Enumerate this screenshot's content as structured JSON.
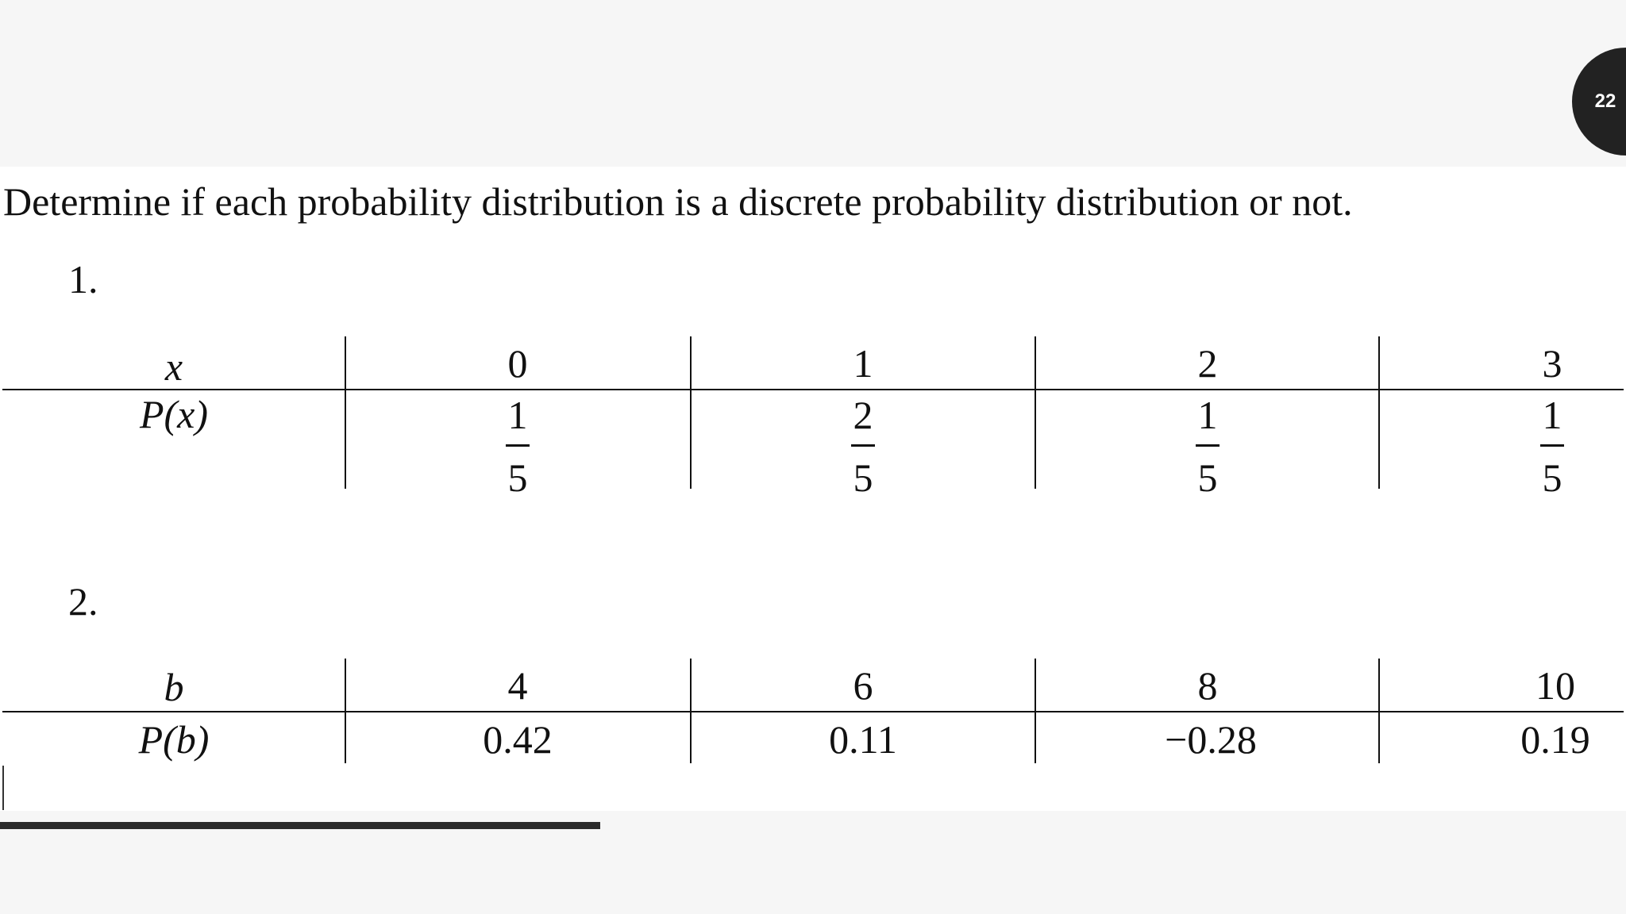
{
  "slide": {
    "number": "22"
  },
  "instruction": "Determine if each probability distribution is a discrete probability distribution or not.",
  "problems": [
    {
      "label": "1.",
      "var_label": "x",
      "prob_label": "P(x)",
      "values": [
        "0",
        "1",
        "2",
        "3"
      ],
      "probabilities": [
        {
          "num": "1",
          "den": "5"
        },
        {
          "num": "2",
          "den": "5"
        },
        {
          "num": "1",
          "den": "5"
        },
        {
          "num": "1",
          "den": "5"
        }
      ]
    },
    {
      "label": "2.",
      "var_label": "b",
      "prob_label": "P(b)",
      "values": [
        "4",
        "6",
        "8",
        "10"
      ],
      "probabilities": [
        "0.42",
        "0.11",
        "−0.28",
        "0.19"
      ]
    }
  ]
}
